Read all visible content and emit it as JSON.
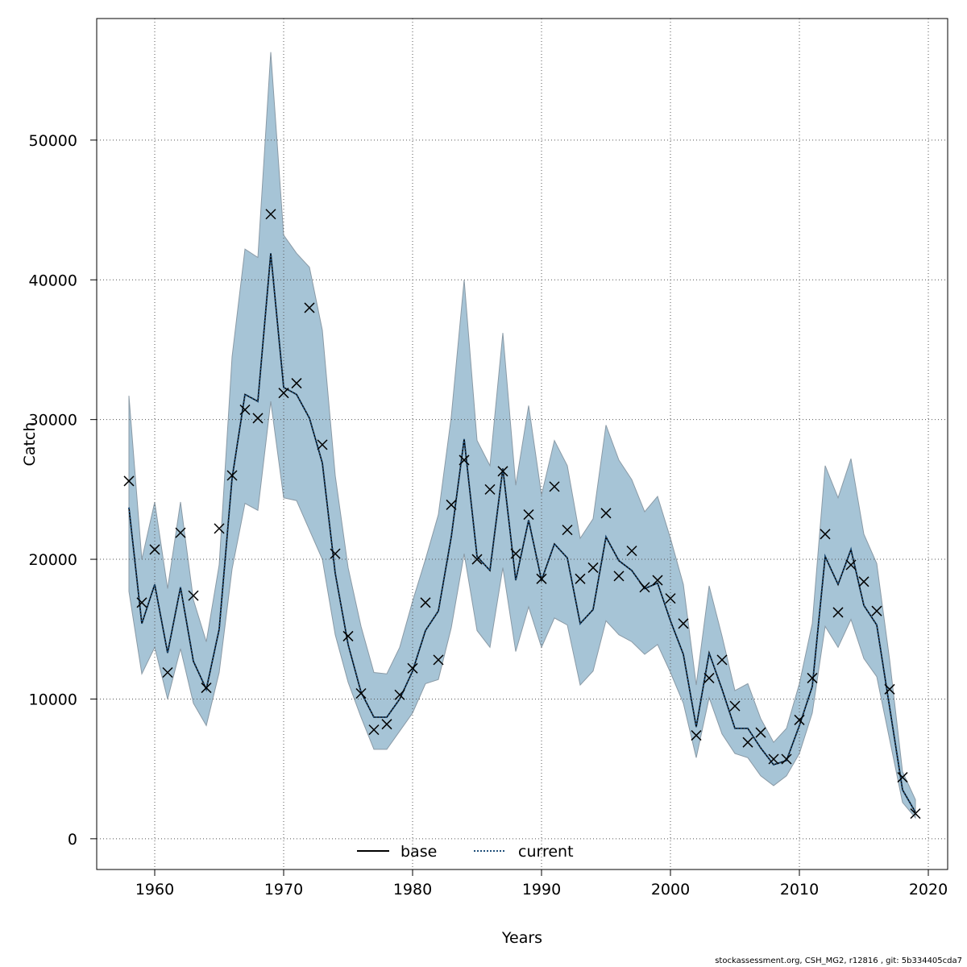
{
  "chart_data": {
    "type": "line",
    "xlabel": "Years",
    "ylabel": "Catch",
    "xlim": [
      1955.5,
      2021.5
    ],
    "ylim": [
      -2200,
      58700
    ],
    "x_ticks": [
      1960,
      1970,
      1980,
      1990,
      2000,
      2010,
      2020
    ],
    "y_ticks": [
      0,
      10000,
      20000,
      30000,
      40000,
      50000
    ],
    "grid": true,
    "legend_position": "bottom",
    "x": [
      1958,
      1959,
      1960,
      1961,
      1962,
      1963,
      1964,
      1965,
      1966,
      1967,
      1968,
      1969,
      1970,
      1971,
      1972,
      1973,
      1974,
      1975,
      1976,
      1977,
      1978,
      1979,
      1980,
      1981,
      1982,
      1983,
      1984,
      1985,
      1986,
      1987,
      1988,
      1989,
      1990,
      1991,
      1992,
      1993,
      1994,
      1995,
      1996,
      1997,
      1998,
      1999,
      2000,
      2001,
      2002,
      2003,
      2004,
      2005,
      2006,
      2007,
      2008,
      2009,
      2010,
      2011,
      2012,
      2013,
      2014,
      2015,
      2016,
      2017,
      2018,
      2019
    ],
    "series": [
      {
        "name": "base",
        "style": "solid",
        "color": "#000000",
        "values": [
          23700,
          15400,
          18200,
          13300,
          18000,
          12700,
          10700,
          15000,
          25800,
          31800,
          31300,
          41900,
          32300,
          31800,
          30100,
          26900,
          19000,
          13900,
          10500,
          8700,
          8700,
          10000,
          12000,
          14900,
          16300,
          21600,
          28600,
          20200,
          19200,
          26500,
          18500,
          22800,
          18500,
          21100,
          20100,
          15400,
          16400,
          21600,
          19900,
          19200,
          17900,
          18300,
          15600,
          13200,
          8000,
          13300,
          10700,
          7900,
          7900,
          6500,
          5300,
          5600,
          8100,
          10900,
          20200,
          18200,
          20700,
          16700,
          15300,
          9400,
          3500,
          1900
        ]
      },
      {
        "name": "current",
        "style": "dotted",
        "color": "#1f4e79",
        "values": [
          23700,
          15400,
          18200,
          13300,
          18000,
          12700,
          10700,
          15000,
          25800,
          31800,
          31300,
          41900,
          32300,
          31800,
          30100,
          26900,
          19000,
          13900,
          10500,
          8700,
          8700,
          10000,
          12000,
          14900,
          16300,
          21600,
          28600,
          20200,
          19200,
          26500,
          18500,
          22800,
          18500,
          21100,
          20100,
          15400,
          16400,
          21600,
          19900,
          19200,
          17900,
          18300,
          15600,
          13200,
          8000,
          13300,
          10700,
          7900,
          7900,
          6500,
          5300,
          5600,
          8100,
          10900,
          20200,
          18200,
          20700,
          16700,
          15300,
          9400,
          3500,
          1900
        ]
      }
    ],
    "band": {
      "color": "#a6c4d6",
      "upper": [
        31700,
        20000,
        24100,
        17900,
        24100,
        17100,
        14100,
        19600,
        34500,
        42200,
        41600,
        56300,
        43200,
        41900,
        40900,
        36400,
        26000,
        19400,
        15200,
        11900,
        11800,
        13700,
        17000,
        20000,
        23200,
        30200,
        40000,
        28500,
        26700,
        36200,
        25300,
        31000,
        24600,
        28500,
        26700,
        21500,
        22900,
        29600,
        27100,
        25700,
        23400,
        24500,
        21500,
        18200,
        11000,
        18100,
        14500,
        10600,
        11100,
        8600,
        6900,
        7900,
        11100,
        15400,
        26700,
        24400,
        27200,
        21800,
        19700,
        12800,
        4800,
        2800
      ],
      "lower": [
        17700,
        11800,
        13700,
        10000,
        13600,
        9700,
        8100,
        11900,
        19300,
        24000,
        23500,
        31300,
        24400,
        24200,
        22100,
        20000,
        14600,
        11200,
        8700,
        6400,
        6400,
        7700,
        9000,
        11100,
        11400,
        15100,
        20400,
        14900,
        13700,
        19400,
        13400,
        16600,
        13700,
        15800,
        15300,
        11000,
        12000,
        15600,
        14600,
        14100,
        13200,
        13900,
        11900,
        9700,
        5800,
        10100,
        7500,
        6100,
        5800,
        4500,
        3800,
        4500,
        6100,
        9000,
        15200,
        13700,
        15700,
        12900,
        11600,
        7100,
        2600,
        1500
      ]
    },
    "observed": [
      25600,
      16900,
      20700,
      11900,
      21900,
      17400,
      10800,
      22200,
      26000,
      30700,
      30100,
      44700,
      31900,
      32600,
      38000,
      28200,
      20400,
      14500,
      10400,
      7800,
      8200,
      10300,
      12200,
      16900,
      12800,
      23900,
      27100,
      20000,
      25000,
      26300,
      20400,
      23200,
      18600,
      25200,
      22100,
      18600,
      19400,
      23300,
      18800,
      20600,
      18000,
      18500,
      17200,
      15400,
      7400,
      11500,
      12800,
      9500,
      6900,
      7600,
      5700,
      5700,
      8500,
      11500,
      21800,
      16200,
      19600,
      18400,
      16300,
      10700,
      4400,
      1800
    ],
    "legend": [
      "base",
      "current"
    ]
  },
  "footer_text": "stockassessment.org, CSH_MG2, r12816 , git: 5b334405cda7"
}
